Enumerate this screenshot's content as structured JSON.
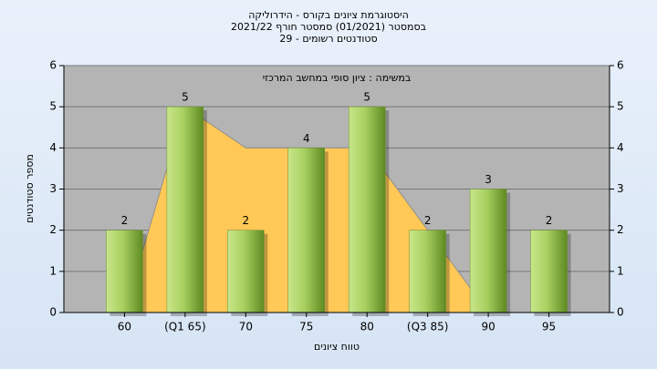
{
  "chart_data": {
    "type": "bar",
    "title": [
      "היסטוגרמת ציונים בקורס - הידרוליקה",
      "בסמסטר  (01/2021)  סמסטר חורף 2021/22",
      "סטודנטים רשומים - 29"
    ],
    "annotation": "במשימה : ציון סופי במחשב המרכזי",
    "x_label": "טווח ציונים",
    "y_label": "מספר סטודנטים",
    "categories": [
      "60",
      "(Q1 65)",
      "70",
      "75",
      "80",
      "(Q3 85)",
      "90",
      "95"
    ],
    "series": [
      {
        "type": "area",
        "color": "#ffc857",
        "values": [
          0,
          5,
          4,
          4,
          4,
          2,
          0,
          0
        ]
      },
      {
        "type": "bar",
        "color": "#9dc850",
        "values": [
          2,
          5,
          2,
          4,
          5,
          2,
          3,
          2
        ]
      }
    ],
    "ylim": [
      0,
      6
    ],
    "yticks": [
      0,
      1,
      2,
      3,
      4,
      5,
      6
    ],
    "y2lim": [
      0,
      6
    ],
    "y2ticks": [
      0,
      1,
      2,
      3,
      4,
      5,
      6
    ],
    "grid": true
  }
}
